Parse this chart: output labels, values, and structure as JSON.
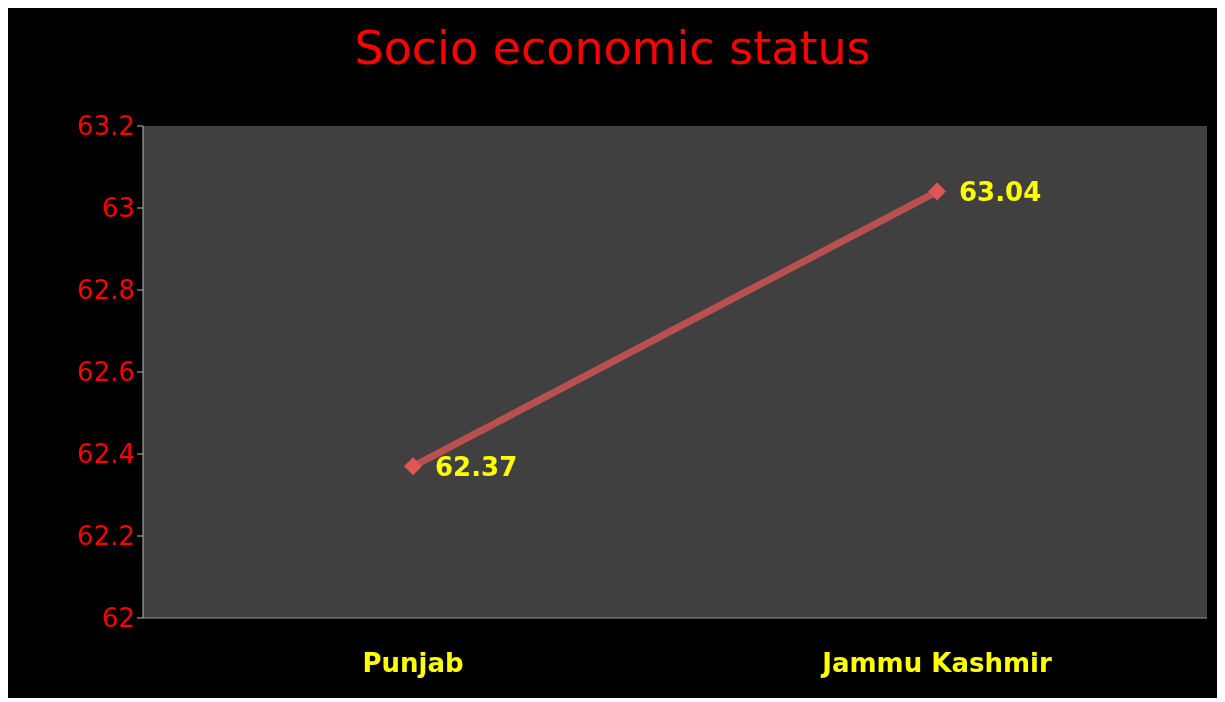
{
  "chart_data": {
    "type": "line",
    "title": "Socio economic status",
    "categories": [
      "Punjab",
      "Jammu Kashmir"
    ],
    "series": [
      {
        "color": "#e05555",
        "values": [
          62.37,
          63.04
        ]
      }
    ],
    "ylim": [
      62,
      63.2
    ],
    "yticks": [
      62,
      62.2,
      62.4,
      62.6,
      62.8,
      63,
      63.2
    ],
    "grid": false,
    "legend": false,
    "marker": "diamond",
    "line_style": "solid",
    "data_labels": true
  }
}
